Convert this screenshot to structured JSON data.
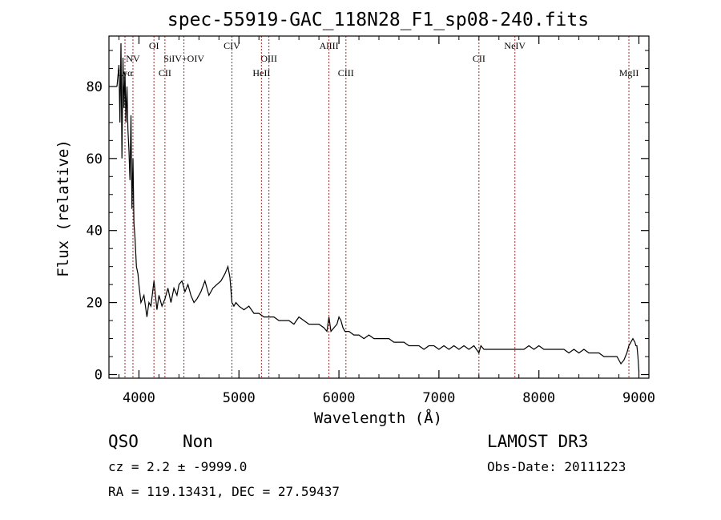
{
  "chart_data": {
    "type": "line",
    "title": "spec-55919-GAC_118N28_F1_sp08-240.fits",
    "xlabel": "Wavelength (Å)",
    "ylabel": "Flux (relative)",
    "xlim": [
      3700,
      9100
    ],
    "ylim": [
      -1,
      94
    ],
    "xticks": [
      4000,
      5000,
      6000,
      7000,
      8000,
      9000
    ],
    "yticks": [
      0,
      20,
      40,
      60,
      80
    ],
    "series": [
      {
        "x": [
          3700,
          3760,
          3780,
          3800,
          3810,
          3820,
          3830,
          3840,
          3850,
          3860,
          3870,
          3880,
          3890,
          3900,
          3910,
          3920,
          3930,
          3940,
          3950,
          3960,
          3975,
          3990,
          4000,
          4020,
          4050,
          4080,
          4100,
          4120,
          4150,
          4180,
          4200,
          4230,
          4260,
          4290,
          4320,
          4350,
          4380,
          4400,
          4430,
          4460,
          4490,
          4520,
          4550,
          4580,
          4620,
          4660,
          4700,
          4740,
          4780,
          4820,
          4860,
          4890,
          4910,
          4930,
          4950,
          4970,
          5000,
          5050,
          5100,
          5150,
          5200,
          5250,
          5300,
          5350,
          5400,
          5450,
          5500,
          5550,
          5600,
          5650,
          5700,
          5750,
          5800,
          5850,
          5880,
          5900,
          5920,
          5950,
          5980,
          6000,
          6020,
          6040,
          6060,
          6080,
          6100,
          6150,
          6200,
          6250,
          6300,
          6350,
          6400,
          6450,
          6500,
          6550,
          6600,
          6650,
          6700,
          6750,
          6800,
          6850,
          6900,
          6950,
          7000,
          7050,
          7100,
          7150,
          7200,
          7250,
          7300,
          7350,
          7400,
          7420,
          7450,
          7500,
          7550,
          7600,
          7650,
          7700,
          7750,
          7800,
          7850,
          7900,
          7950,
          8000,
          8050,
          8100,
          8150,
          8200,
          8250,
          8300,
          8350,
          8400,
          8450,
          8500,
          8550,
          8600,
          8650,
          8700,
          8750,
          8780,
          8800,
          8820,
          8850,
          8880,
          8900,
          8920,
          8940,
          8960,
          8970,
          8980,
          8990,
          9000
        ],
        "y": [
          null,
          null,
          80,
          86,
          70,
          92,
          60,
          88,
          74,
          84,
          70,
          80,
          68,
          62,
          54,
          72,
          46,
          60,
          42,
          38,
          30,
          28,
          25,
          20,
          22,
          16,
          20,
          19,
          26,
          18,
          22,
          19,
          21,
          24,
          20,
          24,
          22,
          25,
          26,
          23,
          25,
          22,
          20,
          21,
          23,
          26,
          22,
          24,
          25,
          26,
          28,
          30,
          27,
          20,
          19,
          20,
          19,
          18,
          19,
          17,
          17,
          16,
          16,
          16,
          15,
          15,
          15,
          14,
          16,
          15,
          14,
          14,
          14,
          13,
          12,
          16,
          12,
          13,
          14,
          16,
          15,
          13,
          12,
          12,
          12,
          11,
          11,
          10,
          11,
          10,
          10,
          10,
          10,
          9,
          9,
          9,
          8,
          8,
          8,
          7,
          8,
          8,
          7,
          8,
          7,
          8,
          7,
          8,
          7,
          8,
          6,
          8,
          7,
          7,
          7,
          7,
          7,
          7,
          7,
          7,
          7,
          8,
          7,
          8,
          7,
          7,
          7,
          7,
          7,
          6,
          7,
          6,
          7,
          6,
          6,
          6,
          5,
          5,
          5,
          5,
          4,
          3,
          4,
          6,
          8,
          9,
          10,
          9,
          8,
          8,
          5,
          1
        ]
      }
    ],
    "line_markers": [
      {
        "label": "Lyα",
        "wave": 3860,
        "row": "lower",
        "anchor": "middle"
      },
      {
        "label": "NV",
        "wave": 3940,
        "row": "middle",
        "anchor": "middle"
      },
      {
        "label": "OI",
        "wave": 4150,
        "row": "upper",
        "anchor": "middle"
      },
      {
        "label": "CII",
        "wave": 4260,
        "row": "lower",
        "anchor": "middle"
      },
      {
        "label": "SiIV+OIV",
        "wave": 4450,
        "row": "middle",
        "anchor": "middle"
      },
      {
        "label": "CIV",
        "wave": 4930,
        "row": "upper",
        "anchor": "middle"
      },
      {
        "label": "OIII",
        "wave": 5300,
        "row": "middle",
        "anchor": "middle"
      },
      {
        "label": "HeII",
        "wave": 5225,
        "row": "lower",
        "anchor": "middle"
      },
      {
        "label": "AlIII",
        "wave": 5900,
        "row": "upper",
        "anchor": "middle"
      },
      {
        "label": "CIII",
        "wave": 6070,
        "row": "lower",
        "anchor": "middle"
      },
      {
        "label": "CII",
        "wave": 7400,
        "row": "middle",
        "anchor": "middle"
      },
      {
        "label": "NeIV",
        "wave": 7760,
        "row": "upper",
        "anchor": "middle"
      },
      {
        "label": "MgII",
        "wave": 8900,
        "row": "lower",
        "anchor": "middle"
      }
    ],
    "grid": false,
    "marker_color": "#b22222",
    "line_color": "#000000"
  },
  "info": {
    "class": "QSO",
    "subclass": "Non",
    "survey": "LAMOST DR3",
    "cz": "cz = 2.2 ± -9999.0",
    "obs_date": "Obs-Date: 20111223",
    "coords": "RA = 119.13431, DEC =  27.59437"
  }
}
